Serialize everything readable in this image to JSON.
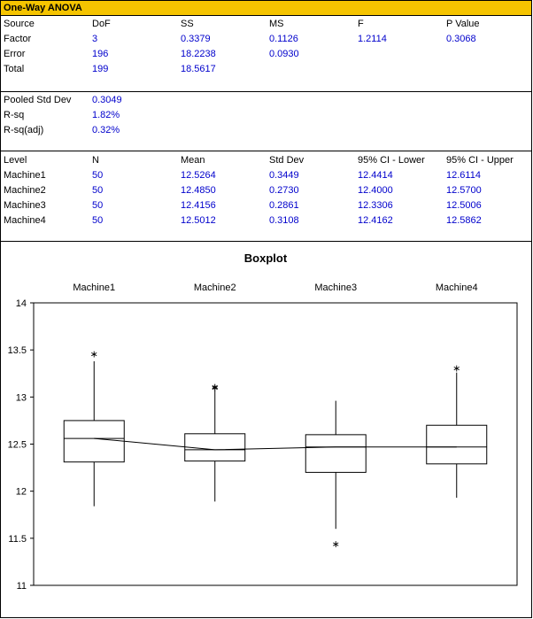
{
  "sheet_title": "One-Way ANOVA",
  "anova": {
    "headers": [
      "Source",
      "DoF",
      "SS",
      "MS",
      "F",
      "P Value"
    ],
    "rows": [
      {
        "source": "Factor",
        "dof": "3",
        "ss": "0.3379",
        "ms": "0.1126",
        "f": "1.2114",
        "p": "0.3068"
      },
      {
        "source": "Error",
        "dof": "196",
        "ss": "18.2238",
        "ms": "0.0930",
        "f": "",
        "p": ""
      },
      {
        "source": "Total",
        "dof": "199",
        "ss": "18.5617",
        "ms": "",
        "f": "",
        "p": ""
      }
    ]
  },
  "summary": [
    {
      "label": "Pooled Std Dev",
      "value": "0.3049"
    },
    {
      "label": "R-sq",
      "value": "1.82%"
    },
    {
      "label": "R-sq(adj)",
      "value": "0.32%"
    }
  ],
  "levels": {
    "headers": [
      "Level",
      "N",
      "Mean",
      "Std Dev",
      "95% CI - Lower",
      "95% CI - Upper"
    ],
    "rows": [
      {
        "level": "Machine1",
        "n": "50",
        "mean": "12.5264",
        "sd": "0.3449",
        "lo": "12.4414",
        "hi": "12.6114"
      },
      {
        "level": "Machine2",
        "n": "50",
        "mean": "12.4850",
        "sd": "0.2730",
        "lo": "12.4000",
        "hi": "12.5700"
      },
      {
        "level": "Machine3",
        "n": "50",
        "mean": "12.4156",
        "sd": "0.2861",
        "lo": "12.3306",
        "hi": "12.5006"
      },
      {
        "level": "Machine4",
        "n": "50",
        "mean": "12.5012",
        "sd": "0.3108",
        "lo": "12.4162",
        "hi": "12.5862"
      }
    ]
  },
  "chart_data": {
    "type": "boxplot",
    "title": "Boxplot",
    "categories": [
      "Machine1",
      "Machine2",
      "Machine3",
      "Machine4"
    ],
    "ylim": [
      11,
      14
    ],
    "yticks": [
      "11",
      "11.5",
      "12",
      "12.5",
      "13",
      "13.5",
      "14"
    ],
    "boxes": [
      {
        "name": "Machine1",
        "min": 11.84,
        "q1": 12.31,
        "median": 12.56,
        "q3": 12.75,
        "max": 13.38,
        "outliers": [
          13.47
        ]
      },
      {
        "name": "Machine2",
        "min": 11.89,
        "q1": 12.32,
        "median": 12.44,
        "q3": 12.61,
        "max": 13.07,
        "outliers": [
          13.11,
          13.12
        ]
      },
      {
        "name": "Machine3",
        "min": 11.6,
        "q1": 12.2,
        "median": 12.47,
        "q3": 12.6,
        "max": 12.96,
        "outliers": [
          11.45
        ]
      },
      {
        "name": "Machine4",
        "min": 11.93,
        "q1": 12.29,
        "median": 12.47,
        "q3": 12.7,
        "max": 13.26,
        "outliers": [
          13.32
        ]
      }
    ],
    "connect_medians": true,
    "grid": false,
    "legend": "none",
    "colors": {
      "box_fill": "#ffffff",
      "stroke": "#000000",
      "outlier": "#000000"
    }
  }
}
